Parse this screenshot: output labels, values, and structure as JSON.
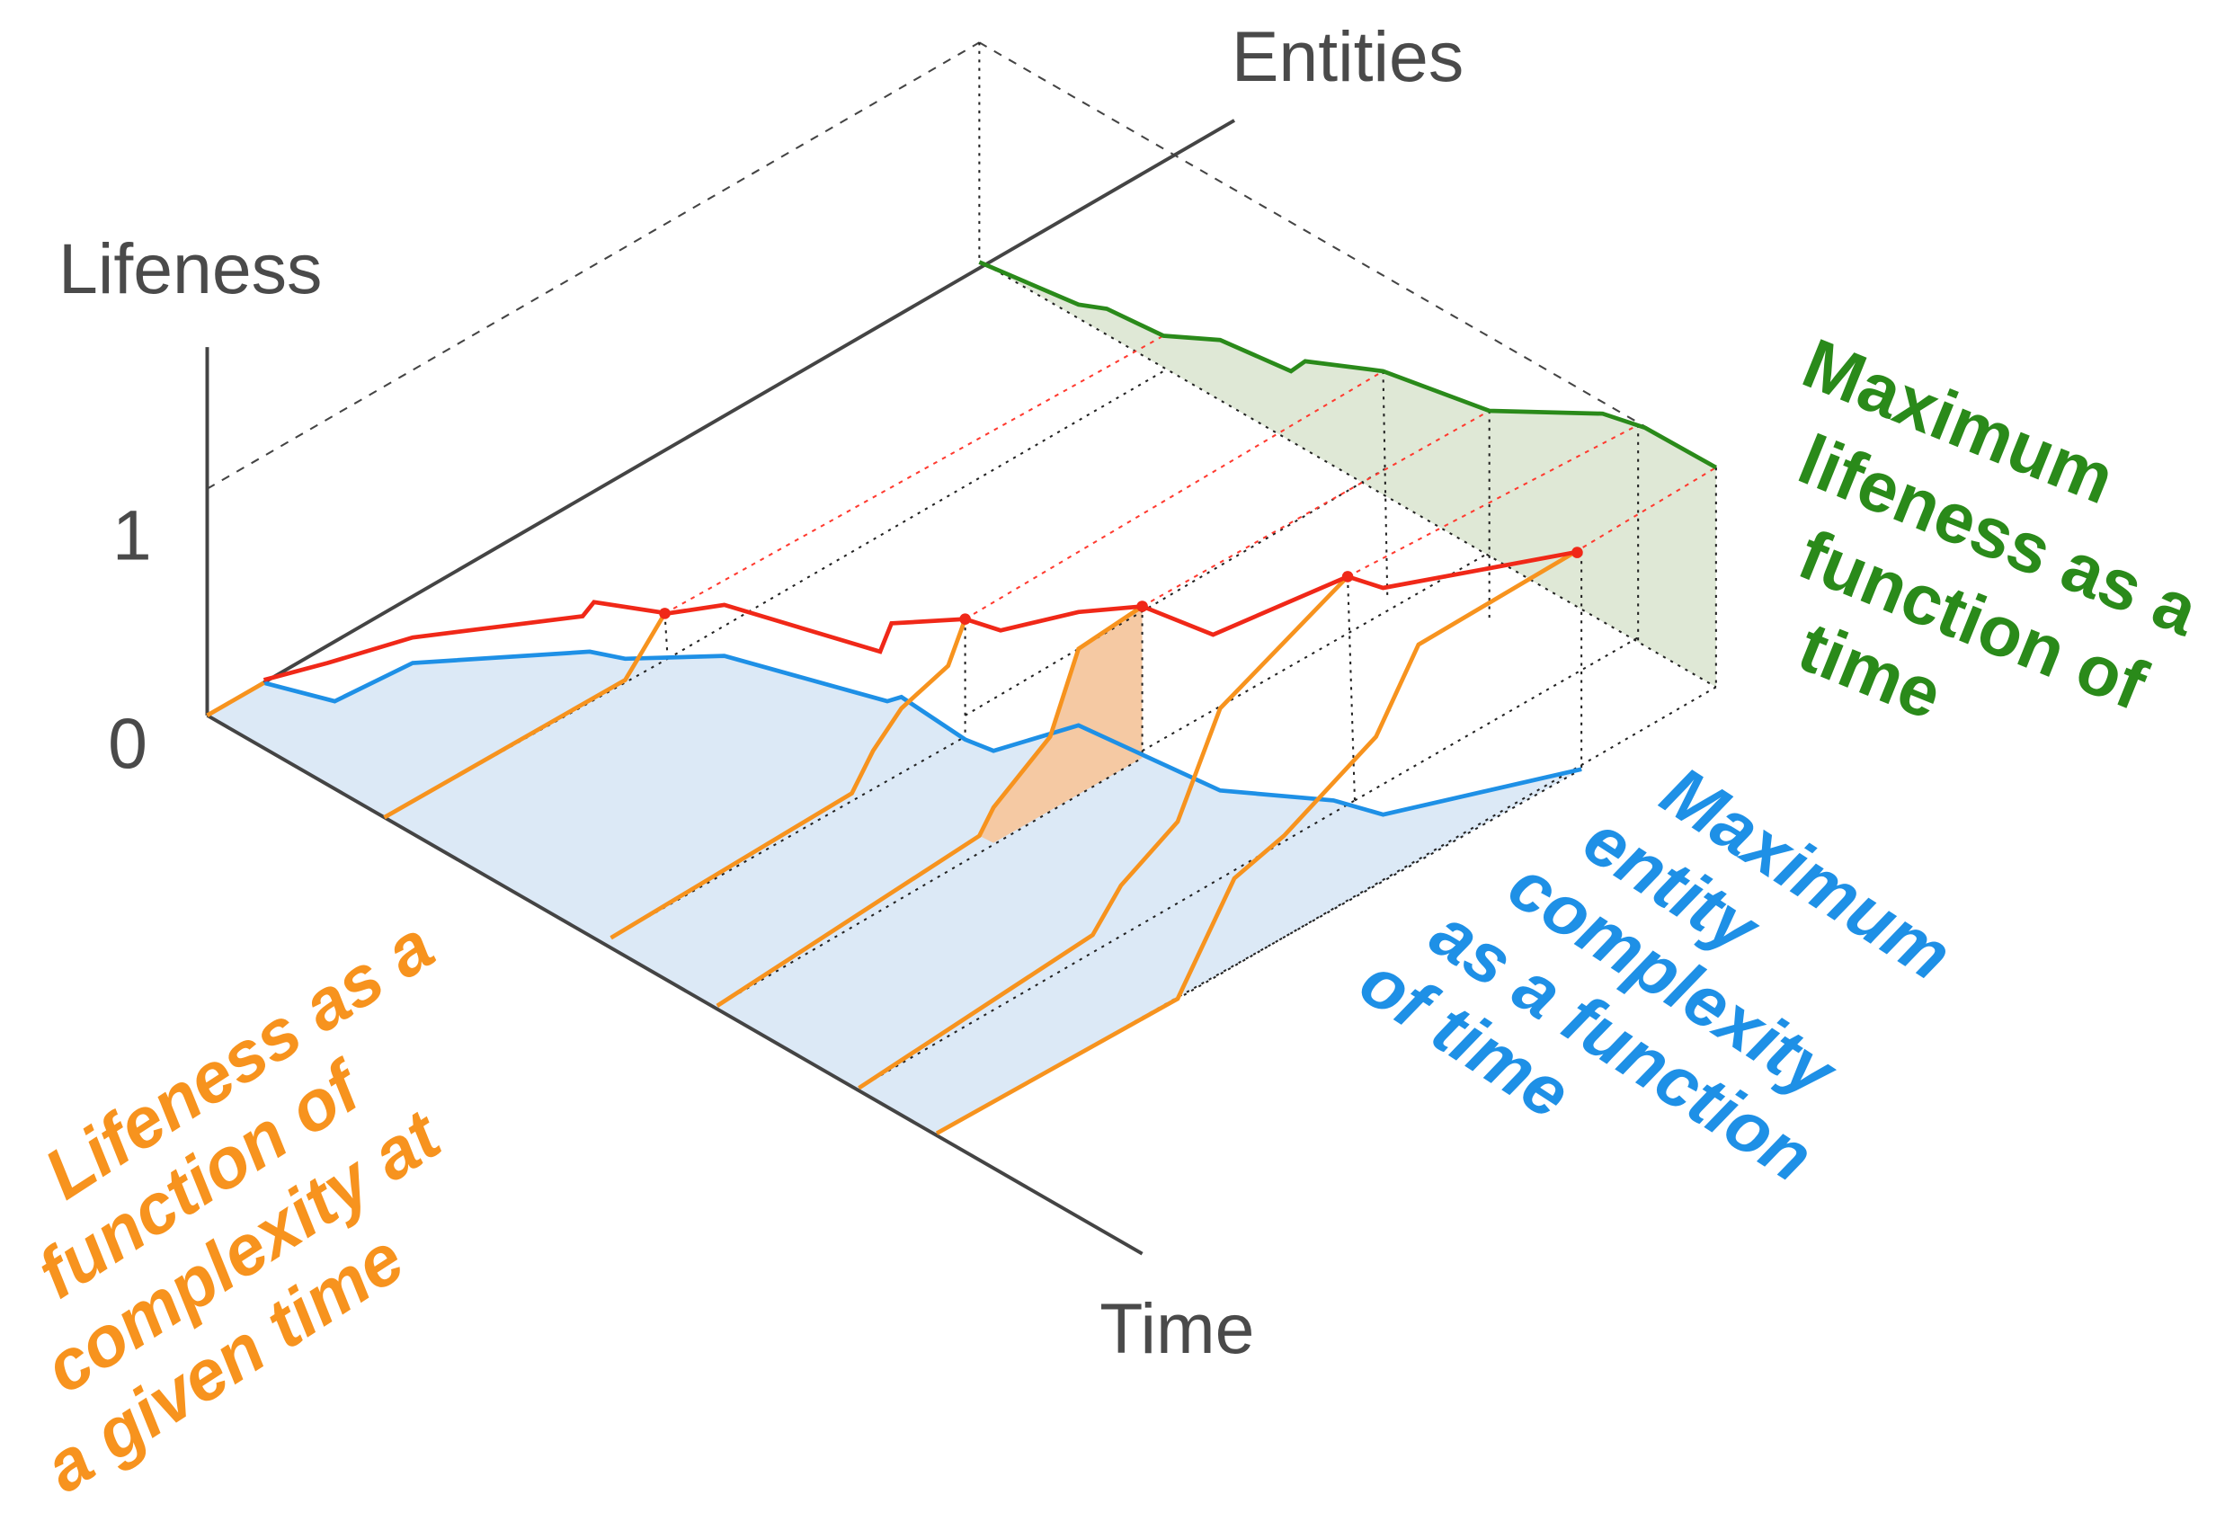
{
  "axes": {
    "entities": "Entities",
    "lifeness": "Lifeness",
    "time": "Time"
  },
  "lifeness_ticks": [
    "1",
    "0"
  ],
  "annotations": {
    "max_lifeness": [
      "Maximum",
      "lifeness as a",
      "function of",
      "time"
    ],
    "max_complexity": [
      "Maximum",
      "entity",
      "complexity",
      "as a function",
      "of time"
    ],
    "lifeness_complexity": [
      "Lifeness as a",
      "function of",
      "complexity at",
      "a given time"
    ]
  }
}
